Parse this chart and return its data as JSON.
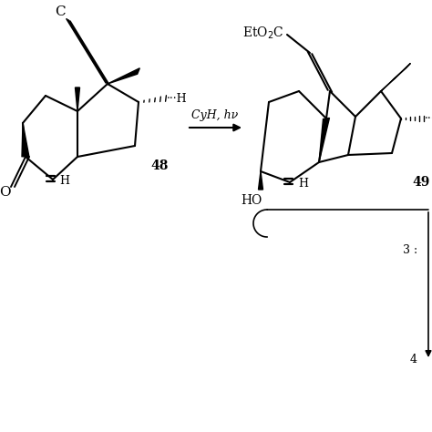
{
  "bg": "#ffffff",
  "lw": 1.5,
  "fig_w": 4.74,
  "fig_h": 4.74,
  "dpi": 100,
  "arrow_label": "CyH, hν",
  "label_48": "48",
  "label_49": "49",
  "label_HO": "HO",
  "label_O": "O",
  "label_C": "C",
  "label_EtO2C": "EtO$_2$C",
  "label_3": "3 :",
  "label_4": "4"
}
